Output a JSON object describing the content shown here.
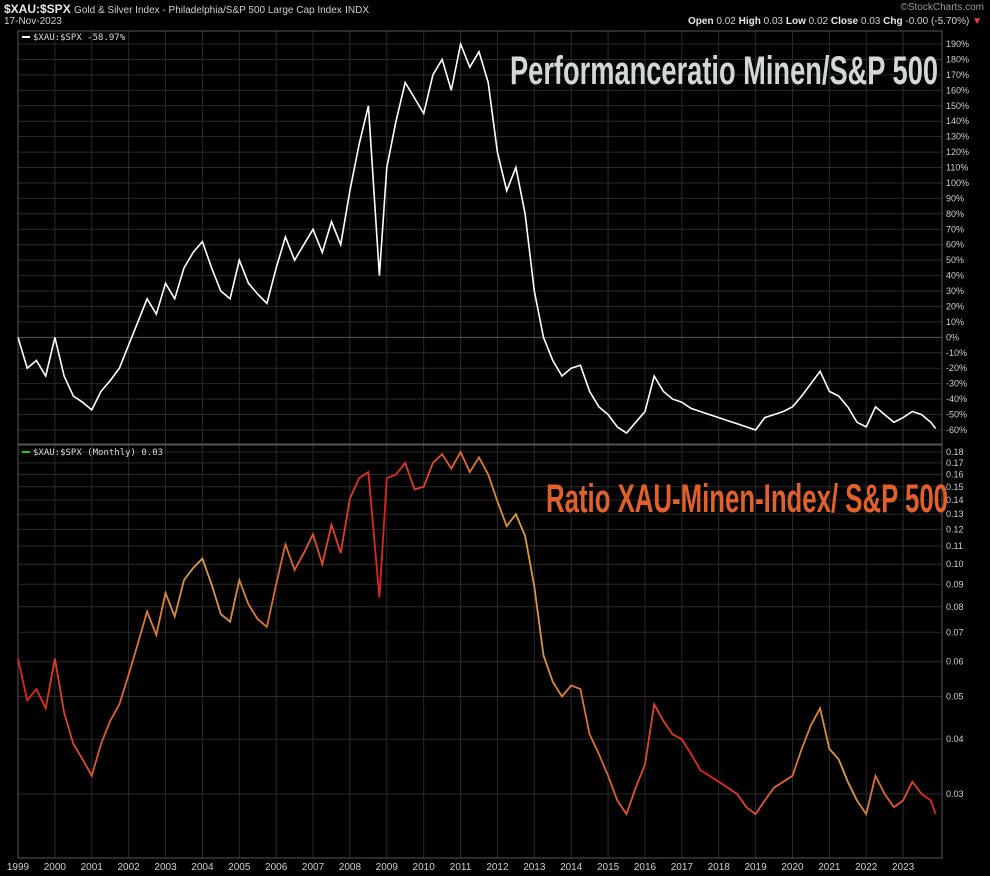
{
  "header": {
    "symbol": "$XAU:$SPX",
    "description": "Gold & Silver Index - Philadelphia/S&P 500 Large Cap Index",
    "exchange": "INDX",
    "date": "17-Nov-2023",
    "source": "©StockCharts.com",
    "open_label": "Open",
    "open_value": "0.02",
    "high_label": "High",
    "high_value": "0.03",
    "low_label": "Low",
    "low_value": "0.02",
    "close_label": "Close",
    "close_value": "0.03",
    "chg_label": "Chg",
    "chg_value": "-0.00 (-5.70%)",
    "down_arrow": "▼"
  },
  "colors": {
    "background": "#000000",
    "grid": "#2a2a2a",
    "axis": "#555555",
    "top_line": "#ffffff",
    "bottom_hi": "#d8a040",
    "bottom_lo": "#e02020",
    "annotation_top": "#d0d8d4",
    "annotation_bottom": "#e2602a"
  },
  "chart_data": [
    {
      "type": "line",
      "panel": "top",
      "legend": "$XAU:$SPX -58.97%",
      "annotation": "Performanceratio Minen/S&P 500",
      "y_unit": "%",
      "ylim": [
        -65,
        195
      ],
      "y_ticks": [
        "190%",
        "180%",
        "170%",
        "160%",
        "150%",
        "140%",
        "130%",
        "120%",
        "110%",
        "100%",
        "90%",
        "80%",
        "70%",
        "60%",
        "50%",
        "40%",
        "30%",
        "20%",
        "10%",
        "0%",
        "-10%",
        "-20%",
        "-30%",
        "-40%",
        "-50%",
        "-60%"
      ],
      "y_tick_values": [
        190,
        180,
        170,
        160,
        150,
        140,
        130,
        120,
        110,
        100,
        90,
        80,
        70,
        60,
        50,
        40,
        30,
        20,
        10,
        0,
        -10,
        -20,
        -30,
        -40,
        -50,
        -60
      ],
      "x": [
        1999.0,
        1999.25,
        1999.5,
        1999.75,
        2000.0,
        2000.25,
        2000.5,
        2000.75,
        2001.0,
        2001.25,
        2001.5,
        2001.75,
        2002.0,
        2002.25,
        2002.5,
        2002.75,
        2003.0,
        2003.25,
        2003.5,
        2003.75,
        2004.0,
        2004.25,
        2004.5,
        2004.75,
        2005.0,
        2005.25,
        2005.5,
        2005.75,
        2006.0,
        2006.25,
        2006.5,
        2006.75,
        2007.0,
        2007.25,
        2007.5,
        2007.75,
        2008.0,
        2008.25,
        2008.5,
        2008.8,
        2009.0,
        2009.25,
        2009.5,
        2009.75,
        2010.0,
        2010.25,
        2010.5,
        2010.75,
        2011.0,
        2011.25,
        2011.5,
        2011.75,
        2012.0,
        2012.25,
        2012.5,
        2012.75,
        2013.0,
        2013.25,
        2013.5,
        2013.75,
        2014.0,
        2014.25,
        2014.5,
        2014.75,
        2015.0,
        2015.25,
        2015.5,
        2015.75,
        2016.0,
        2016.25,
        2016.5,
        2016.75,
        2017.0,
        2017.25,
        2017.5,
        2017.75,
        2018.0,
        2018.25,
        2018.5,
        2018.75,
        2019.0,
        2019.25,
        2019.5,
        2019.75,
        2020.0,
        2020.25,
        2020.5,
        2020.75,
        2021.0,
        2021.25,
        2021.5,
        2021.75,
        2022.0,
        2022.25,
        2022.5,
        2022.75,
        2023.0,
        2023.25,
        2023.5,
        2023.75,
        2023.88
      ],
      "values": [
        0,
        -20,
        -15,
        -25,
        0,
        -25,
        -38,
        -42,
        -47,
        -35,
        -28,
        -20,
        -5,
        10,
        25,
        15,
        35,
        25,
        45,
        55,
        62,
        45,
        30,
        25,
        50,
        35,
        28,
        22,
        45,
        65,
        50,
        60,
        70,
        55,
        75,
        60,
        95,
        125,
        150,
        40,
        110,
        140,
        165,
        155,
        145,
        170,
        180,
        160,
        190,
        175,
        185,
        165,
        120,
        95,
        110,
        80,
        30,
        0,
        -15,
        -25,
        -20,
        -18,
        -35,
        -45,
        -50,
        -58,
        -62,
        -55,
        -48,
        -25,
        -35,
        -40,
        -42,
        -46,
        -48,
        -50,
        -52,
        -54,
        -56,
        -58,
        -60,
        -52,
        -50,
        -48,
        -45,
        -38,
        -30,
        -22,
        -35,
        -38,
        -45,
        -55,
        -58,
        -45,
        -50,
        -55,
        -52,
        -48,
        -50,
        -55,
        -59
      ]
    },
    {
      "type": "line",
      "panel": "bottom",
      "legend": "$XAU:$SPX (Monthly) 0.03",
      "annotation": "Ratio XAU-Minen-Index/ S&P 500",
      "y_scale": "log",
      "ylim": [
        0.025,
        0.18
      ],
      "y_ticks": [
        "0.18",
        "0.17",
        "0.16",
        "0.15",
        "0.14",
        "0.13",
        "0.12",
        "0.11",
        "0.10",
        "0.09",
        "0.08",
        "0.07",
        "0.06",
        "0.05",
        "0.04",
        "0.03"
      ],
      "y_tick_values": [
        0.18,
        0.17,
        0.16,
        0.15,
        0.14,
        0.13,
        0.12,
        0.11,
        0.1,
        0.09,
        0.08,
        0.07,
        0.06,
        0.05,
        0.04,
        0.03
      ],
      "x": [
        1999.0,
        1999.25,
        1999.5,
        1999.75,
        2000.0,
        2000.25,
        2000.5,
        2000.75,
        2001.0,
        2001.25,
        2001.5,
        2001.75,
        2002.0,
        2002.25,
        2002.5,
        2002.75,
        2003.0,
        2003.25,
        2003.5,
        2003.75,
        2004.0,
        2004.25,
        2004.5,
        2004.75,
        2005.0,
        2005.25,
        2005.5,
        2005.75,
        2006.0,
        2006.25,
        2006.5,
        2006.75,
        2007.0,
        2007.25,
        2007.5,
        2007.75,
        2008.0,
        2008.25,
        2008.5,
        2008.8,
        2009.0,
        2009.25,
        2009.5,
        2009.75,
        2010.0,
        2010.25,
        2010.5,
        2010.75,
        2011.0,
        2011.25,
        2011.5,
        2011.75,
        2012.0,
        2012.25,
        2012.5,
        2012.75,
        2013.0,
        2013.25,
        2013.5,
        2013.75,
        2014.0,
        2014.25,
        2014.5,
        2014.75,
        2015.0,
        2015.25,
        2015.5,
        2015.75,
        2016.0,
        2016.25,
        2016.5,
        2016.75,
        2017.0,
        2017.25,
        2017.5,
        2017.75,
        2018.0,
        2018.25,
        2018.5,
        2018.75,
        2019.0,
        2019.25,
        2019.5,
        2019.75,
        2020.0,
        2020.25,
        2020.5,
        2020.75,
        2021.0,
        2021.25,
        2021.5,
        2021.75,
        2022.0,
        2022.25,
        2022.5,
        2022.75,
        2023.0,
        2023.25,
        2023.5,
        2023.75,
        2023.88
      ],
      "values": [
        0.061,
        0.049,
        0.052,
        0.047,
        0.061,
        0.046,
        0.039,
        0.036,
        0.033,
        0.039,
        0.044,
        0.048,
        0.056,
        0.066,
        0.078,
        0.069,
        0.086,
        0.076,
        0.092,
        0.098,
        0.103,
        0.09,
        0.077,
        0.074,
        0.092,
        0.081,
        0.075,
        0.072,
        0.09,
        0.111,
        0.097,
        0.106,
        0.117,
        0.1,
        0.123,
        0.106,
        0.141,
        0.157,
        0.162,
        0.084,
        0.157,
        0.16,
        0.17,
        0.148,
        0.15,
        0.17,
        0.178,
        0.165,
        0.18,
        0.162,
        0.175,
        0.16,
        0.139,
        0.122,
        0.13,
        0.116,
        0.089,
        0.062,
        0.054,
        0.05,
        0.053,
        0.052,
        0.041,
        0.037,
        0.033,
        0.029,
        0.027,
        0.031,
        0.035,
        0.048,
        0.044,
        0.041,
        0.04,
        0.037,
        0.034,
        0.033,
        0.032,
        0.031,
        0.03,
        0.028,
        0.027,
        0.029,
        0.031,
        0.032,
        0.033,
        0.038,
        0.043,
        0.047,
        0.038,
        0.036,
        0.032,
        0.029,
        0.027,
        0.033,
        0.03,
        0.028,
        0.029,
        0.032,
        0.03,
        0.029,
        0.027
      ]
    }
  ],
  "x_axis": {
    "years": [
      "1999",
      "2000",
      "2001",
      "2002",
      "2003",
      "2004",
      "2005",
      "2006",
      "2007",
      "2008",
      "2009",
      "2010",
      "2011",
      "2012",
      "2013",
      "2014",
      "2015",
      "2016",
      "2017",
      "2018",
      "2019",
      "2020",
      "2021",
      "2022",
      "2023"
    ],
    "year_values": [
      1999,
      2000,
      2001,
      2002,
      2003,
      2004,
      2005,
      2006,
      2007,
      2008,
      2009,
      2010,
      2011,
      2012,
      2013,
      2014,
      2015,
      2016,
      2017,
      2018,
      2019,
      2020,
      2021,
      2022,
      2023
    ],
    "xlim": [
      1999.0,
      2024.0
    ]
  }
}
